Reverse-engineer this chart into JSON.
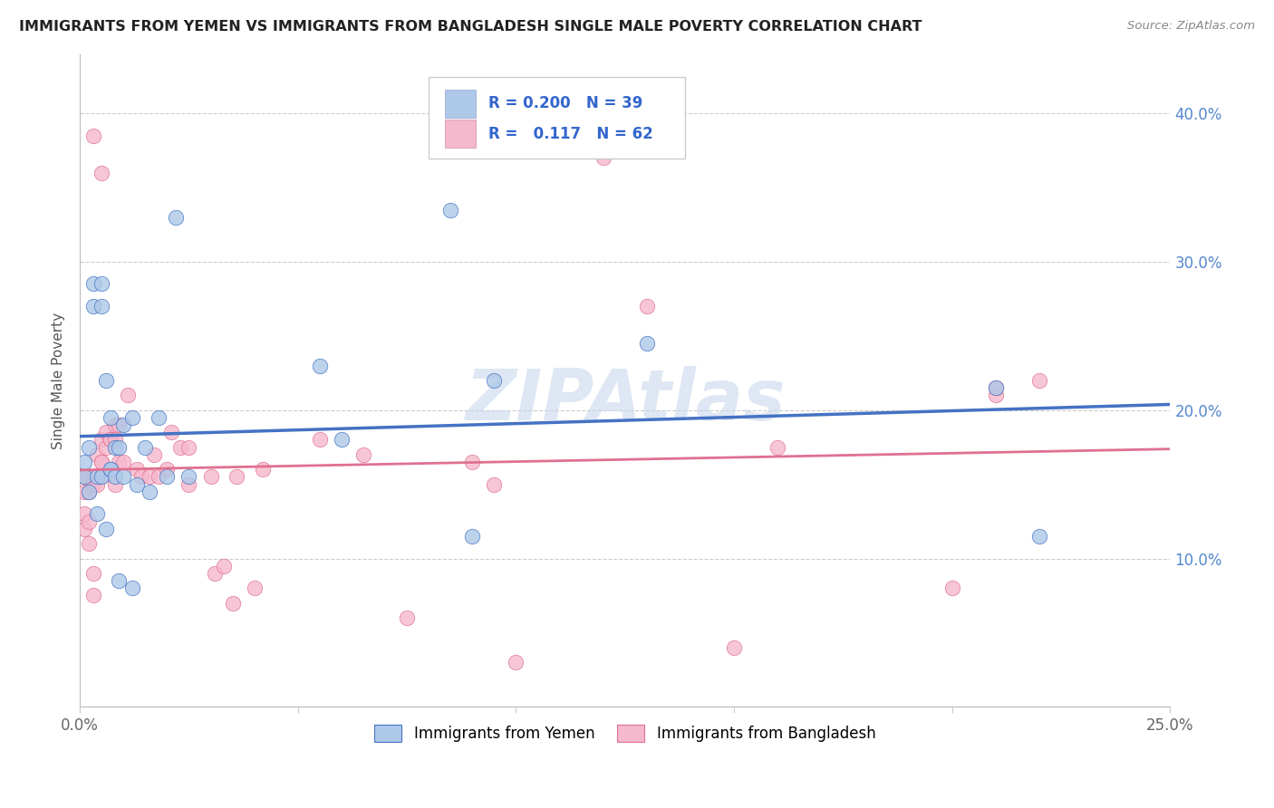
{
  "title": "IMMIGRANTS FROM YEMEN VS IMMIGRANTS FROM BANGLADESH SINGLE MALE POVERTY CORRELATION CHART",
  "source": "Source: ZipAtlas.com",
  "ylabel": "Single Male Poverty",
  "ytick_vals": [
    0.0,
    0.1,
    0.2,
    0.3,
    0.4
  ],
  "ytick_labels": [
    "",
    "10.0%",
    "20.0%",
    "30.0%",
    "40.0%"
  ],
  "xtick_vals": [
    0.0,
    0.05,
    0.1,
    0.15,
    0.2,
    0.25
  ],
  "xtick_labels": [
    "0.0%",
    "",
    "",
    "",
    "",
    "25.0%"
  ],
  "xlim": [
    0.0,
    0.25
  ],
  "ylim": [
    0.0,
    0.44
  ],
  "R_yemen": 0.2,
  "N_yemen": 39,
  "R_bangladesh": 0.117,
  "N_bangladesh": 62,
  "color_yemen": "#adc8e8",
  "color_bangladesh": "#f5b8cc",
  "line_color_yemen": "#4472c4",
  "line_color_bangladesh": "#e07090",
  "watermark": "ZIPAtlas",
  "legend_label_yemen": "Immigrants from Yemen",
  "legend_label_bangladesh": "Immigrants from Bangladesh",
  "yemen_x": [
    0.001,
    0.001,
    0.002,
    0.002,
    0.003,
    0.003,
    0.004,
    0.004,
    0.005,
    0.005,
    0.005,
    0.006,
    0.006,
    0.007,
    0.007,
    0.007,
    0.008,
    0.008,
    0.009,
    0.009,
    0.01,
    0.01,
    0.012,
    0.012,
    0.013,
    0.015,
    0.016,
    0.018,
    0.02,
    0.022,
    0.025,
    0.055,
    0.06,
    0.085,
    0.09,
    0.095,
    0.13,
    0.21,
    0.22
  ],
  "yemen_y": [
    0.165,
    0.155,
    0.145,
    0.175,
    0.27,
    0.285,
    0.155,
    0.13,
    0.27,
    0.285,
    0.155,
    0.22,
    0.12,
    0.16,
    0.16,
    0.195,
    0.175,
    0.155,
    0.085,
    0.175,
    0.155,
    0.19,
    0.195,
    0.08,
    0.15,
    0.175,
    0.145,
    0.195,
    0.155,
    0.33,
    0.155,
    0.23,
    0.18,
    0.335,
    0.115,
    0.22,
    0.245,
    0.215,
    0.115
  ],
  "bangladesh_x": [
    0.001,
    0.001,
    0.001,
    0.001,
    0.002,
    0.002,
    0.002,
    0.002,
    0.003,
    0.003,
    0.003,
    0.003,
    0.004,
    0.004,
    0.005,
    0.005,
    0.005,
    0.005,
    0.006,
    0.006,
    0.007,
    0.007,
    0.008,
    0.008,
    0.008,
    0.009,
    0.009,
    0.01,
    0.011,
    0.013,
    0.014,
    0.016,
    0.017,
    0.018,
    0.02,
    0.021,
    0.023,
    0.025,
    0.025,
    0.03,
    0.031,
    0.033,
    0.035,
    0.036,
    0.04,
    0.042,
    0.055,
    0.065,
    0.075,
    0.09,
    0.095,
    0.1,
    0.12,
    0.13,
    0.15,
    0.16,
    0.2,
    0.21,
    0.21,
    0.22,
    0.003,
    0.005
  ],
  "bangladesh_y": [
    0.145,
    0.13,
    0.12,
    0.155,
    0.155,
    0.145,
    0.125,
    0.11,
    0.155,
    0.15,
    0.09,
    0.075,
    0.15,
    0.17,
    0.165,
    0.18,
    0.165,
    0.155,
    0.185,
    0.175,
    0.18,
    0.18,
    0.18,
    0.19,
    0.15,
    0.165,
    0.19,
    0.165,
    0.21,
    0.16,
    0.155,
    0.155,
    0.17,
    0.155,
    0.16,
    0.185,
    0.175,
    0.15,
    0.175,
    0.155,
    0.09,
    0.095,
    0.07,
    0.155,
    0.08,
    0.16,
    0.18,
    0.17,
    0.06,
    0.165,
    0.15,
    0.03,
    0.37,
    0.27,
    0.04,
    0.175,
    0.08,
    0.21,
    0.215,
    0.22,
    0.385,
    0.36
  ]
}
